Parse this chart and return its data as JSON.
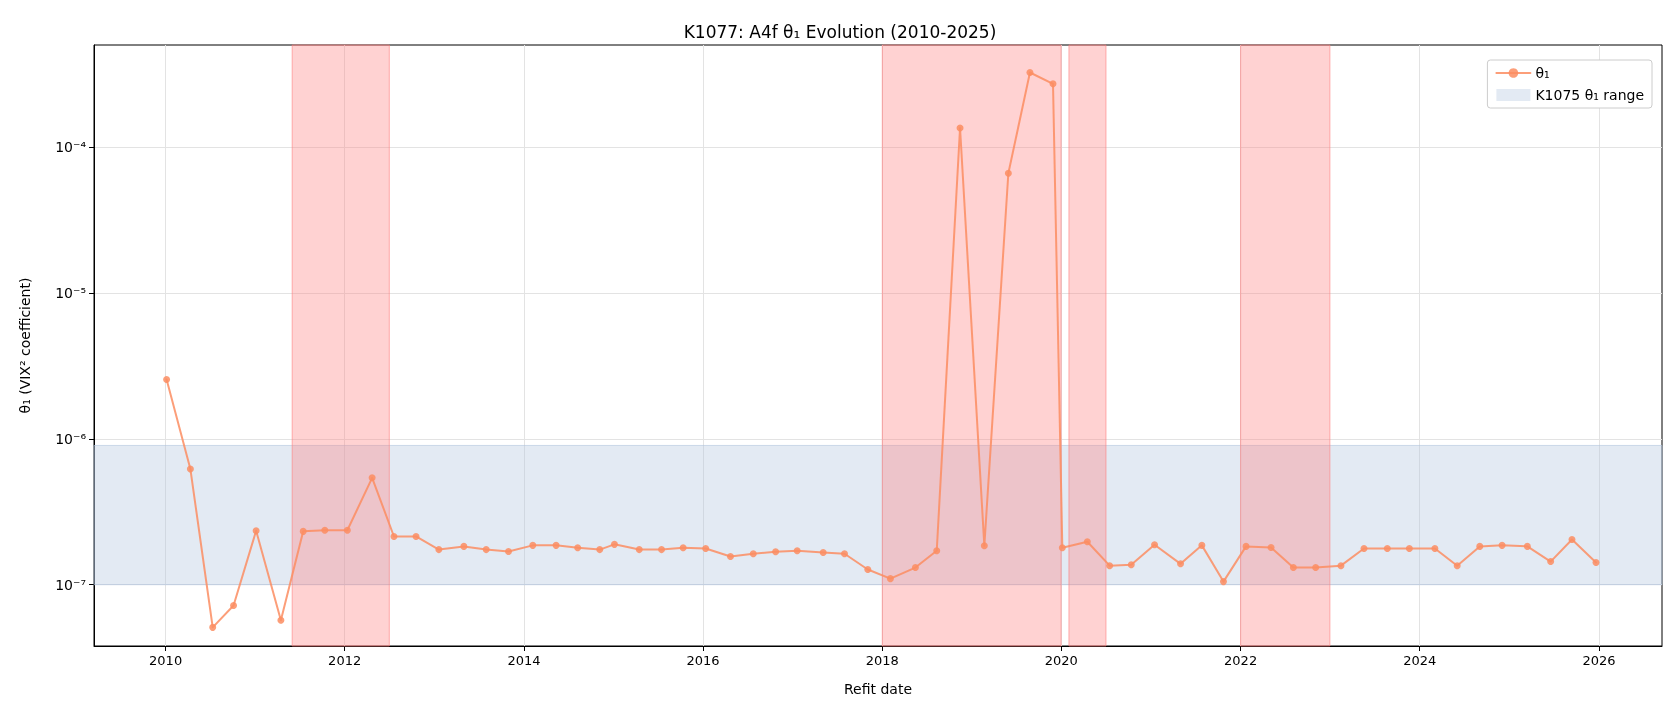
{
  "chart_data": {
    "type": "line",
    "title": "K1077: A4f θ₁ Evolution (2010-2025)",
    "xlabel": "Refit date",
    "ylabel": "θ₁ (VIX² coefficient)",
    "log": "y",
    "grid": true,
    "legend": "top right",
    "marker": "circle",
    "line_style": "solid",
    "xlim": [
      "2009-03-15",
      "2026-09-15"
    ],
    "xticks": [
      "2010",
      "2012",
      "2014",
      "2016",
      "2018",
      "2020",
      "2022",
      "2024",
      "2026"
    ],
    "ylim": [
      3.8e-08,
      0.0005
    ],
    "yticks": [
      {
        "value": 1e-07,
        "label": "10⁻⁷"
      },
      {
        "value": 1e-06,
        "label": "10⁻⁶"
      },
      {
        "value": 1e-05,
        "label": "10⁻⁵"
      },
      {
        "value": 0.0001,
        "label": "10⁻⁴"
      }
    ],
    "bands": [
      {
        "axis": "y",
        "from": 1e-07,
        "to": 9e-07,
        "label": "K1075 θ₁ range",
        "color": "#b0c4de"
      },
      {
        "axis": "x",
        "from": "2011-06-01",
        "to": "2012-07-01",
        "color": "#ff7f7f"
      },
      {
        "axis": "x",
        "from": "2018-01-01",
        "to": "2019-12-31",
        "color": "#ff7f7f"
      },
      {
        "axis": "x",
        "from": "2020-02-01",
        "to": "2020-07-01",
        "color": "#ff7f7f"
      },
      {
        "axis": "x",
        "from": "2022-01-01",
        "to": "2022-12-31",
        "color": "#ff7f7f"
      }
    ],
    "series": [
      {
        "name": "θ₁",
        "color": "#fc8d62",
        "x": [
          "2010-01-05",
          "2010-04-12",
          "2010-07-12",
          "2010-10-05",
          "2011-01-05",
          "2011-04-16",
          "2011-07-16",
          "2011-10-12",
          "2012-01-12",
          "2012-04-22",
          "2012-07-20",
          "2012-10-18",
          "2013-01-19",
          "2013-05-01",
          "2013-07-31",
          "2013-10-30",
          "2014-02-06",
          "2014-05-12",
          "2014-08-08",
          "2014-11-06",
          "2015-01-05",
          "2015-04-16",
          "2015-07-16",
          "2015-10-12",
          "2016-01-12",
          "2016-04-22",
          "2016-07-24",
          "2016-10-23",
          "2017-01-19",
          "2017-05-05",
          "2017-07-31",
          "2017-11-03",
          "2018-02-03",
          "2018-05-16",
          "2018-08-11",
          "2018-11-14",
          "2019-02-21",
          "2019-05-30",
          "2019-08-26",
          "2019-11-28",
          "2020-01-05",
          "2020-04-16",
          "2020-07-16",
          "2020-10-12",
          "2021-01-15",
          "2021-05-01",
          "2021-07-27",
          "2021-10-23",
          "2022-01-23",
          "2022-05-05",
          "2022-08-04",
          "2022-11-03",
          "2023-02-14",
          "2023-05-19",
          "2023-08-22",
          "2023-11-20",
          "2024-03-03",
          "2024-06-02",
          "2024-09-02",
          "2024-12-02",
          "2025-03-15",
          "2025-06-18",
          "2025-09-13",
          "2025-12-20"
        ],
        "values": [
          2.55e-06,
          6.2e-07,
          5.1e-08,
          7.2e-08,
          2.34e-07,
          5.7e-08,
          2.32e-07,
          2.36e-07,
          2.36e-07,
          5.4e-07,
          2.14e-07,
          2.14e-07,
          1.74e-07,
          1.83e-07,
          1.74e-07,
          1.69e-07,
          1.86e-07,
          1.86e-07,
          1.79e-07,
          1.74e-07,
          1.89e-07,
          1.74e-07,
          1.74e-07,
          1.79e-07,
          1.77e-07,
          1.56e-07,
          1.63e-07,
          1.68e-07,
          1.71e-07,
          1.66e-07,
          1.63e-07,
          1.27e-07,
          1.1e-07,
          1.31e-07,
          1.71e-07,
          0.000135,
          1.85e-07,
          6.6e-05,
          0.000324,
          0.000271,
          1.79e-07,
          1.97e-07,
          1.35e-07,
          1.37e-07,
          1.88e-07,
          1.39e-07,
          1.86e-07,
          1.05e-07,
          1.83e-07,
          1.8e-07,
          1.31e-07,
          1.31e-07,
          1.35e-07,
          1.77e-07,
          1.77e-07,
          1.77e-07,
          1.77e-07,
          1.35e-07,
          1.83e-07,
          1.86e-07,
          1.83e-07,
          1.44e-07,
          2.04e-07,
          1.42e-07
        ]
      }
    ]
  }
}
